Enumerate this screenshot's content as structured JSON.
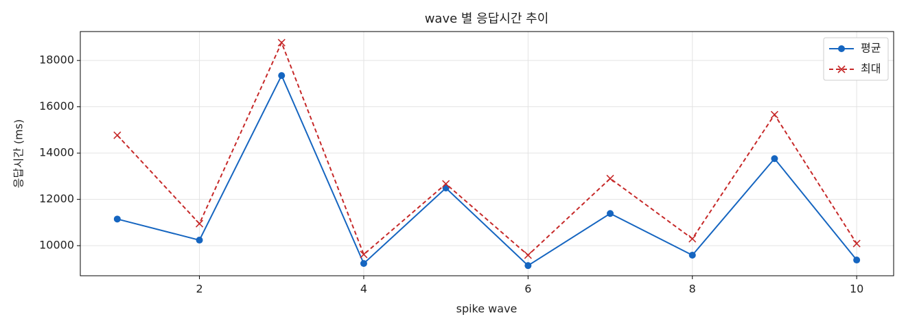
{
  "chart_data": {
    "type": "line",
    "title": "wave 별 응답시간 추이",
    "x_label": "spike wave",
    "y_label": "응답시간 (ms)",
    "x": [
      1,
      2,
      3,
      4,
      5,
      6,
      7,
      8,
      9,
      10
    ],
    "series": [
      {
        "name": "평균",
        "color": "#1565c0",
        "marker": "o",
        "linestyle": "solid",
        "values": [
          11150,
          10240,
          17350,
          9230,
          12490,
          9140,
          11390,
          9590,
          13760,
          9380
        ]
      },
      {
        "name": "최대",
        "color": "#c62828",
        "marker": "x",
        "linestyle": "dashed",
        "values": [
          14770,
          10950,
          18770,
          9620,
          12670,
          9590,
          12900,
          10300,
          15660,
          10090
        ]
      }
    ],
    "xlim": [
      0.55,
      10.45
    ],
    "xticks": [
      2,
      4,
      6,
      8,
      10
    ],
    "ylim": [
      8700,
      19250
    ],
    "yticks": [
      10000,
      12000,
      14000,
      16000,
      18000
    ],
    "grid": true,
    "legend": "upper right"
  }
}
